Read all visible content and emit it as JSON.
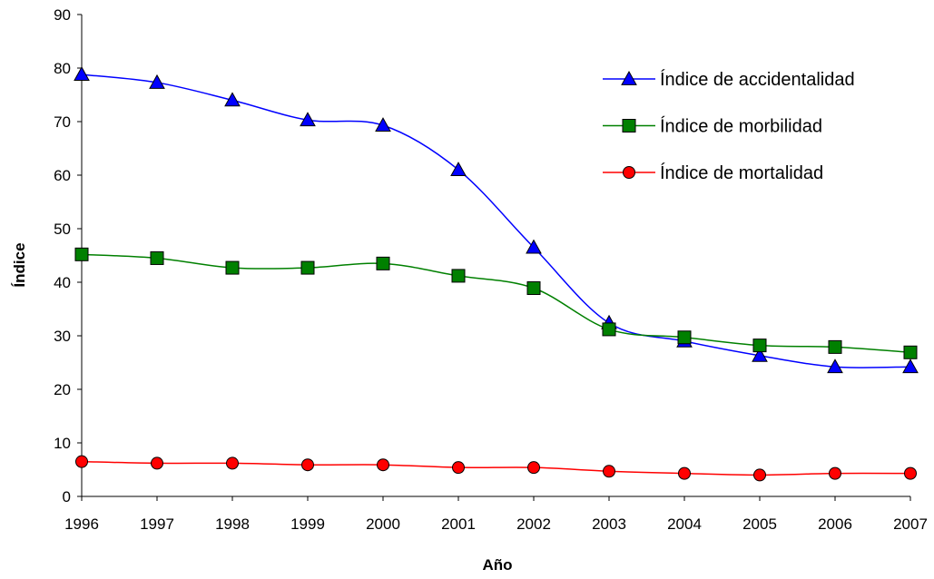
{
  "chart_data": {
    "type": "line",
    "xlabel": "Año",
    "ylabel": "Índice",
    "ylim": [
      0,
      90
    ],
    "yticks": [
      0,
      10,
      20,
      30,
      40,
      50,
      60,
      70,
      80,
      90
    ],
    "x": [
      "1996",
      "1997",
      "1998",
      "1999",
      "2000",
      "2001",
      "2002",
      "2003",
      "2004",
      "2005",
      "2006",
      "2007"
    ],
    "grid": false,
    "legend_position": "top-right",
    "series": [
      {
        "name": "Índice de accidentalidad",
        "marker": "triangle",
        "color": "#0000ff",
        "marker_color": "#0000ff",
        "values": [
          78.8,
          77.3,
          74.0,
          70.3,
          69.3,
          61.0,
          46.5,
          32.4,
          29.0,
          26.3,
          24.2,
          24.2
        ]
      },
      {
        "name": "Índice de morbilidad",
        "marker": "square",
        "color": "#008000",
        "marker_color": "#008000",
        "values": [
          45.2,
          44.5,
          42.7,
          42.7,
          43.5,
          41.2,
          38.9,
          31.2,
          29.7,
          28.2,
          27.9,
          26.9
        ]
      },
      {
        "name": "Índice de mortalidad",
        "marker": "circle",
        "color": "#ff0000",
        "marker_color": "#ff0000",
        "values": [
          6.5,
          6.2,
          6.2,
          5.9,
          5.9,
          5.4,
          5.4,
          4.7,
          4.3,
          4.0,
          4.3,
          4.3
        ]
      }
    ]
  }
}
